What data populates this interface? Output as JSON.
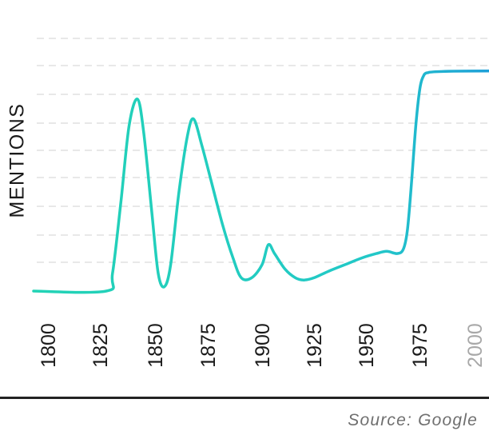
{
  "chart_data": {
    "type": "line",
    "title": "",
    "xlabel": "",
    "ylabel": "MENTIONS",
    "x_ticks": [
      "1800",
      "1825",
      "1850",
      "1875",
      "1900",
      "1925",
      "1950",
      "1975",
      "2000"
    ],
    "xlim": [
      1800,
      2010
    ],
    "ylim": [
      0,
      100
    ],
    "grid": true,
    "series": [
      {
        "points": [
          [
            1800,
            0
          ],
          [
            1835,
            0
          ],
          [
            1838,
            8
          ],
          [
            1842,
            40
          ],
          [
            1846,
            75
          ],
          [
            1850,
            87
          ],
          [
            1853,
            72
          ],
          [
            1857,
            35
          ],
          [
            1860,
            8
          ],
          [
            1863,
            2
          ],
          [
            1866,
            12
          ],
          [
            1870,
            45
          ],
          [
            1874,
            70
          ],
          [
            1877,
            78
          ],
          [
            1881,
            66
          ],
          [
            1886,
            48
          ],
          [
            1891,
            30
          ],
          [
            1896,
            15
          ],
          [
            1900,
            6
          ],
          [
            1905,
            6
          ],
          [
            1910,
            12
          ],
          [
            1913,
            21
          ],
          [
            1916,
            17
          ],
          [
            1921,
            10
          ],
          [
            1926,
            6
          ],
          [
            1930,
            5
          ],
          [
            1935,
            6
          ],
          [
            1942,
            9
          ],
          [
            1950,
            12
          ],
          [
            1958,
            15
          ],
          [
            1965,
            17
          ],
          [
            1970,
            18
          ],
          [
            1975,
            17
          ],
          [
            1978,
            19
          ],
          [
            1980,
            28
          ],
          [
            1982,
            50
          ],
          [
            1984,
            75
          ],
          [
            1986,
            92
          ],
          [
            1988,
            98
          ],
          [
            1990,
            99
          ]
        ]
      }
    ],
    "colors": {
      "line_start": "#22d3b5",
      "line_end": "#1e9fd8",
      "grid": "#e0e0e0",
      "tick_text": "#1a1a1a",
      "last_tick_text": "#a8a8a8"
    }
  },
  "source_text": "Source: Google"
}
